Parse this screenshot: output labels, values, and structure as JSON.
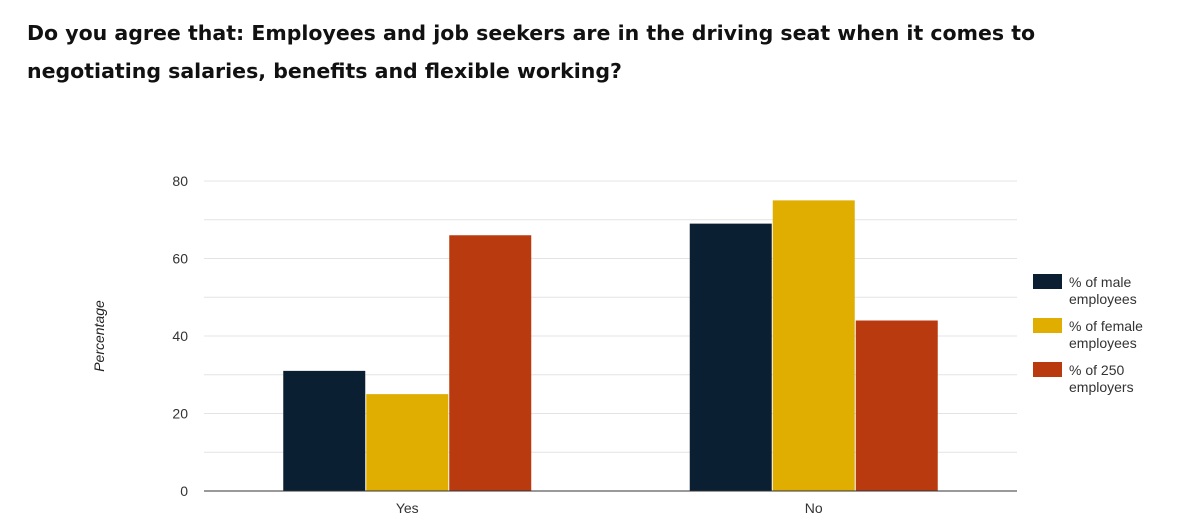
{
  "question": "Do you agree that: Employees and job seekers are in the driving seat when it comes to negotiating salaries, benefits and flexible working?",
  "chart_data": {
    "type": "bar",
    "title": "Do you agree that: Employees and job seekers are in the driving seat when it comes to negotiating salaries, benefits and flexible working?",
    "xlabel": "",
    "ylabel": "Percentage",
    "categories": [
      "Yes",
      "No"
    ],
    "ylim": [
      0,
      80
    ],
    "yticks": [
      0,
      20,
      40,
      60,
      80
    ],
    "grid": true,
    "legend_position": "right",
    "series": [
      {
        "name": "% of male employees",
        "legend_lines": [
          "% of male",
          "employees"
        ],
        "color": "#0b1f33",
        "values": [
          31,
          69
        ]
      },
      {
        "name": "% of female employees",
        "legend_lines": [
          "% of female",
          "employees"
        ],
        "color": "#e0ae00",
        "values": [
          25,
          75
        ]
      },
      {
        "name": "% of 250 employers",
        "legend_lines": [
          "% of 250",
          "employers"
        ],
        "color": "#b93a0f",
        "values": [
          66,
          44
        ]
      }
    ]
  }
}
